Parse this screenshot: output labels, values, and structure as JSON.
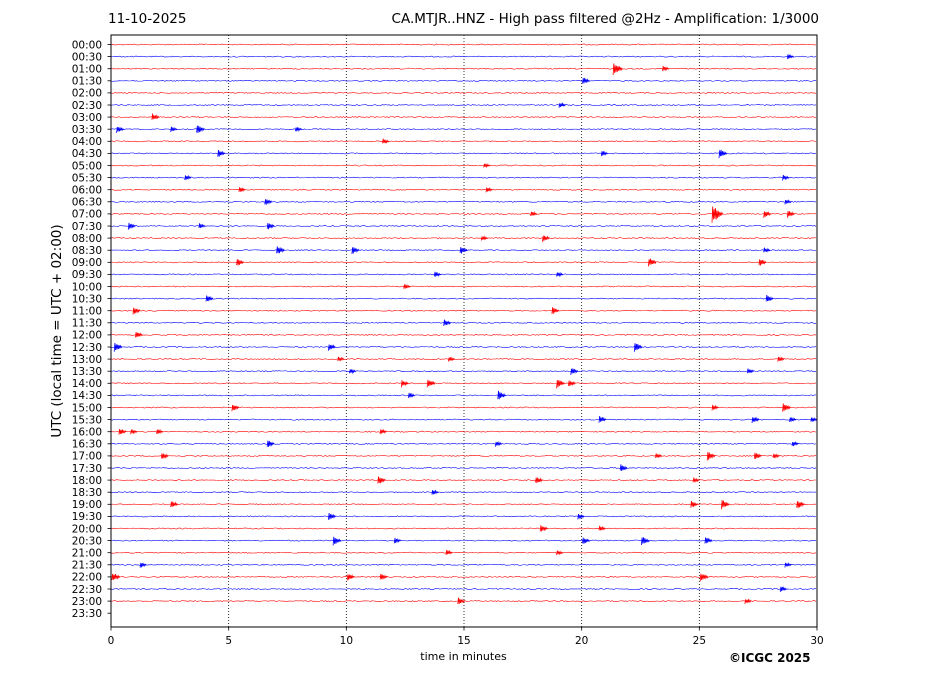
{
  "header": {
    "date": "11-10-2025",
    "title": "CA.MTJR..HNZ - High pass filtered @2Hz - Amplification: 1/3000"
  },
  "footer": {
    "copyright": "©ICGC 2025"
  },
  "chart_data": {
    "type": "line",
    "title": "CA.MTJR..HNZ - High pass filtered @2Hz - Amplification: 1/3000",
    "xlabel": "time in minutes",
    "ylabel": "UTC (local time = UTC + 02:00)",
    "xlim": [
      0,
      30
    ],
    "xticks": [
      "0",
      "5",
      "10",
      "15",
      "20",
      "25",
      "30"
    ],
    "yticks": [
      "00:00",
      "00:30",
      "01:00",
      "01:30",
      "02:00",
      "02:30",
      "03:00",
      "03:30",
      "04:00",
      "04:30",
      "05:00",
      "05:30",
      "06:00",
      "06:30",
      "07:00",
      "07:30",
      "08:00",
      "08:30",
      "09:00",
      "09:30",
      "10:00",
      "10:30",
      "11:00",
      "11:30",
      "12:00",
      "12:30",
      "13:00",
      "13:30",
      "14:00",
      "14:30",
      "15:00",
      "15:30",
      "16:00",
      "16:30",
      "17:00",
      "17:30",
      "18:00",
      "18:30",
      "19:00",
      "19:30",
      "20:00",
      "20:30",
      "21:00",
      "21:30",
      "22:00",
      "22:30",
      "23:00",
      "23:30"
    ],
    "vertical_grid": "dotted at each 5-minute tick",
    "trace_colors": [
      "#ff0000",
      "#0000ff"
    ],
    "traces_present_until": "23:00",
    "events": [
      {
        "row": "00:30",
        "minute": 28.8,
        "amp": 3
      },
      {
        "row": "01:00",
        "minute": 21.4,
        "amp": 7
      },
      {
        "row": "01:00",
        "minute": 23.5,
        "amp": 3
      },
      {
        "row": "01:30",
        "minute": 20.1,
        "amp": 4
      },
      {
        "row": "02:30",
        "minute": 19.1,
        "amp": 3
      },
      {
        "row": "03:00",
        "minute": 1.8,
        "amp": 4
      },
      {
        "row": "03:30",
        "minute": 0.3,
        "amp": 4
      },
      {
        "row": "03:30",
        "minute": 3.7,
        "amp": 5
      },
      {
        "row": "03:30",
        "minute": 2.6,
        "amp": 3
      },
      {
        "row": "03:30",
        "minute": 7.9,
        "amp": 3
      },
      {
        "row": "04:00",
        "minute": 11.6,
        "amp": 3
      },
      {
        "row": "04:30",
        "minute": 4.6,
        "amp": 4
      },
      {
        "row": "04:30",
        "minute": 25.9,
        "amp": 5
      },
      {
        "row": "04:30",
        "minute": 20.9,
        "amp": 3
      },
      {
        "row": "05:00",
        "minute": 15.9,
        "amp": 3
      },
      {
        "row": "05:30",
        "minute": 3.2,
        "amp": 3
      },
      {
        "row": "05:30",
        "minute": 28.6,
        "amp": 3
      },
      {
        "row": "06:00",
        "minute": 5.5,
        "amp": 3
      },
      {
        "row": "06:00",
        "minute": 16.0,
        "amp": 3
      },
      {
        "row": "06:30",
        "minute": 6.6,
        "amp": 4
      },
      {
        "row": "06:30",
        "minute": 28.7,
        "amp": 3
      },
      {
        "row": "07:00",
        "minute": 25.6,
        "amp": 9
      },
      {
        "row": "07:00",
        "minute": 27.8,
        "amp": 4
      },
      {
        "row": "07:00",
        "minute": 28.8,
        "amp": 4
      },
      {
        "row": "07:00",
        "minute": 17.9,
        "amp": 3
      },
      {
        "row": "07:30",
        "minute": 0.8,
        "amp": 4
      },
      {
        "row": "07:30",
        "minute": 6.7,
        "amp": 4
      },
      {
        "row": "07:30",
        "minute": 3.8,
        "amp": 3
      },
      {
        "row": "08:00",
        "minute": 18.4,
        "amp": 4
      },
      {
        "row": "08:00",
        "minute": 15.8,
        "amp": 3
      },
      {
        "row": "08:30",
        "minute": 7.1,
        "amp": 5
      },
      {
        "row": "08:30",
        "minute": 10.3,
        "amp": 4
      },
      {
        "row": "08:30",
        "minute": 14.9,
        "amp": 4
      },
      {
        "row": "08:30",
        "minute": 27.8,
        "amp": 3
      },
      {
        "row": "09:00",
        "minute": 5.4,
        "amp": 4
      },
      {
        "row": "09:00",
        "minute": 22.9,
        "amp": 5
      },
      {
        "row": "09:00",
        "minute": 27.6,
        "amp": 4
      },
      {
        "row": "09:30",
        "minute": 13.8,
        "amp": 3
      },
      {
        "row": "09:30",
        "minute": 19.0,
        "amp": 3
      },
      {
        "row": "10:00",
        "minute": 12.5,
        "amp": 3
      },
      {
        "row": "10:30",
        "minute": 4.1,
        "amp": 4
      },
      {
        "row": "10:30",
        "minute": 27.9,
        "amp": 4
      },
      {
        "row": "11:00",
        "minute": 1.0,
        "amp": 4
      },
      {
        "row": "11:00",
        "minute": 18.8,
        "amp": 4
      },
      {
        "row": "11:30",
        "minute": 14.2,
        "amp": 4
      },
      {
        "row": "12:00",
        "minute": 1.1,
        "amp": 4
      },
      {
        "row": "12:30",
        "minute": 0.2,
        "amp": 5
      },
      {
        "row": "12:30",
        "minute": 9.3,
        "amp": 4
      },
      {
        "row": "12:30",
        "minute": 22.3,
        "amp": 5
      },
      {
        "row": "13:00",
        "minute": 9.7,
        "amp": 3
      },
      {
        "row": "13:00",
        "minute": 14.4,
        "amp": 3
      },
      {
        "row": "13:00",
        "minute": 28.4,
        "amp": 3
      },
      {
        "row": "13:30",
        "minute": 10.2,
        "amp": 3
      },
      {
        "row": "13:30",
        "minute": 19.6,
        "amp": 4
      },
      {
        "row": "13:30",
        "minute": 27.1,
        "amp": 3
      },
      {
        "row": "14:00",
        "minute": 12.4,
        "amp": 4
      },
      {
        "row": "14:00",
        "minute": 13.5,
        "amp": 5
      },
      {
        "row": "14:00",
        "minute": 19.0,
        "amp": 5
      },
      {
        "row": "14:00",
        "minute": 19.5,
        "amp": 4
      },
      {
        "row": "14:30",
        "minute": 12.7,
        "amp": 3
      },
      {
        "row": "14:30",
        "minute": 16.5,
        "amp": 5
      },
      {
        "row": "15:00",
        "minute": 5.2,
        "amp": 4
      },
      {
        "row": "15:00",
        "minute": 28.6,
        "amp": 5
      },
      {
        "row": "15:00",
        "minute": 25.6,
        "amp": 3
      },
      {
        "row": "15:30",
        "minute": 20.8,
        "amp": 4
      },
      {
        "row": "15:30",
        "minute": 27.3,
        "amp": 4
      },
      {
        "row": "15:30",
        "minute": 28.9,
        "amp": 3
      },
      {
        "row": "15:30",
        "minute": 29.8,
        "amp": 3
      },
      {
        "row": "16:00",
        "minute": 0.4,
        "amp": 4
      },
      {
        "row": "16:00",
        "minute": 0.9,
        "amp": 3
      },
      {
        "row": "16:00",
        "minute": 2.0,
        "amp": 3
      },
      {
        "row": "16:00",
        "minute": 11.5,
        "amp": 3
      },
      {
        "row": "16:30",
        "minute": 6.7,
        "amp": 4
      },
      {
        "row": "16:30",
        "minute": 16.4,
        "amp": 3
      },
      {
        "row": "16:30",
        "minute": 29.0,
        "amp": 3
      },
      {
        "row": "17:00",
        "minute": 2.2,
        "amp": 4
      },
      {
        "row": "17:00",
        "minute": 25.4,
        "amp": 5
      },
      {
        "row": "17:00",
        "minute": 27.4,
        "amp": 4
      },
      {
        "row": "17:00",
        "minute": 28.2,
        "amp": 3
      },
      {
        "row": "17:00",
        "minute": 23.2,
        "amp": 3
      },
      {
        "row": "17:30",
        "minute": 21.7,
        "amp": 4
      },
      {
        "row": "18:00",
        "minute": 11.4,
        "amp": 5
      },
      {
        "row": "18:00",
        "minute": 18.1,
        "amp": 4
      },
      {
        "row": "18:00",
        "minute": 24.8,
        "amp": 3
      },
      {
        "row": "18:30",
        "minute": 13.7,
        "amp": 3
      },
      {
        "row": "19:00",
        "minute": 2.6,
        "amp": 4
      },
      {
        "row": "19:00",
        "minute": 24.7,
        "amp": 4
      },
      {
        "row": "19:00",
        "minute": 26.0,
        "amp": 5
      },
      {
        "row": "19:00",
        "minute": 29.2,
        "amp": 5
      },
      {
        "row": "19:30",
        "minute": 9.3,
        "amp": 4
      },
      {
        "row": "19:30",
        "minute": 19.9,
        "amp": 3
      },
      {
        "row": "20:00",
        "minute": 18.3,
        "amp": 4
      },
      {
        "row": "20:00",
        "minute": 20.8,
        "amp": 3
      },
      {
        "row": "20:30",
        "minute": 9.5,
        "amp": 5
      },
      {
        "row": "20:30",
        "minute": 20.1,
        "amp": 4
      },
      {
        "row": "20:30",
        "minute": 22.6,
        "amp": 5
      },
      {
        "row": "20:30",
        "minute": 25.3,
        "amp": 4
      },
      {
        "row": "20:30",
        "minute": 12.1,
        "amp": 3
      },
      {
        "row": "21:00",
        "minute": 19.0,
        "amp": 3
      },
      {
        "row": "21:00",
        "minute": 14.3,
        "amp": 3
      },
      {
        "row": "21:30",
        "minute": 1.3,
        "amp": 3
      },
      {
        "row": "21:30",
        "minute": 28.7,
        "amp": 3
      },
      {
        "row": "22:00",
        "minute": 0.1,
        "amp": 5
      },
      {
        "row": "22:00",
        "minute": 10.1,
        "amp": 4
      },
      {
        "row": "22:00",
        "minute": 11.5,
        "amp": 4
      },
      {
        "row": "22:00",
        "minute": 25.1,
        "amp": 5
      },
      {
        "row": "22:30",
        "minute": 28.5,
        "amp": 3
      },
      {
        "row": "23:00",
        "minute": 14.8,
        "amp": 4
      },
      {
        "row": "23:00",
        "minute": 27.0,
        "amp": 3
      }
    ]
  }
}
